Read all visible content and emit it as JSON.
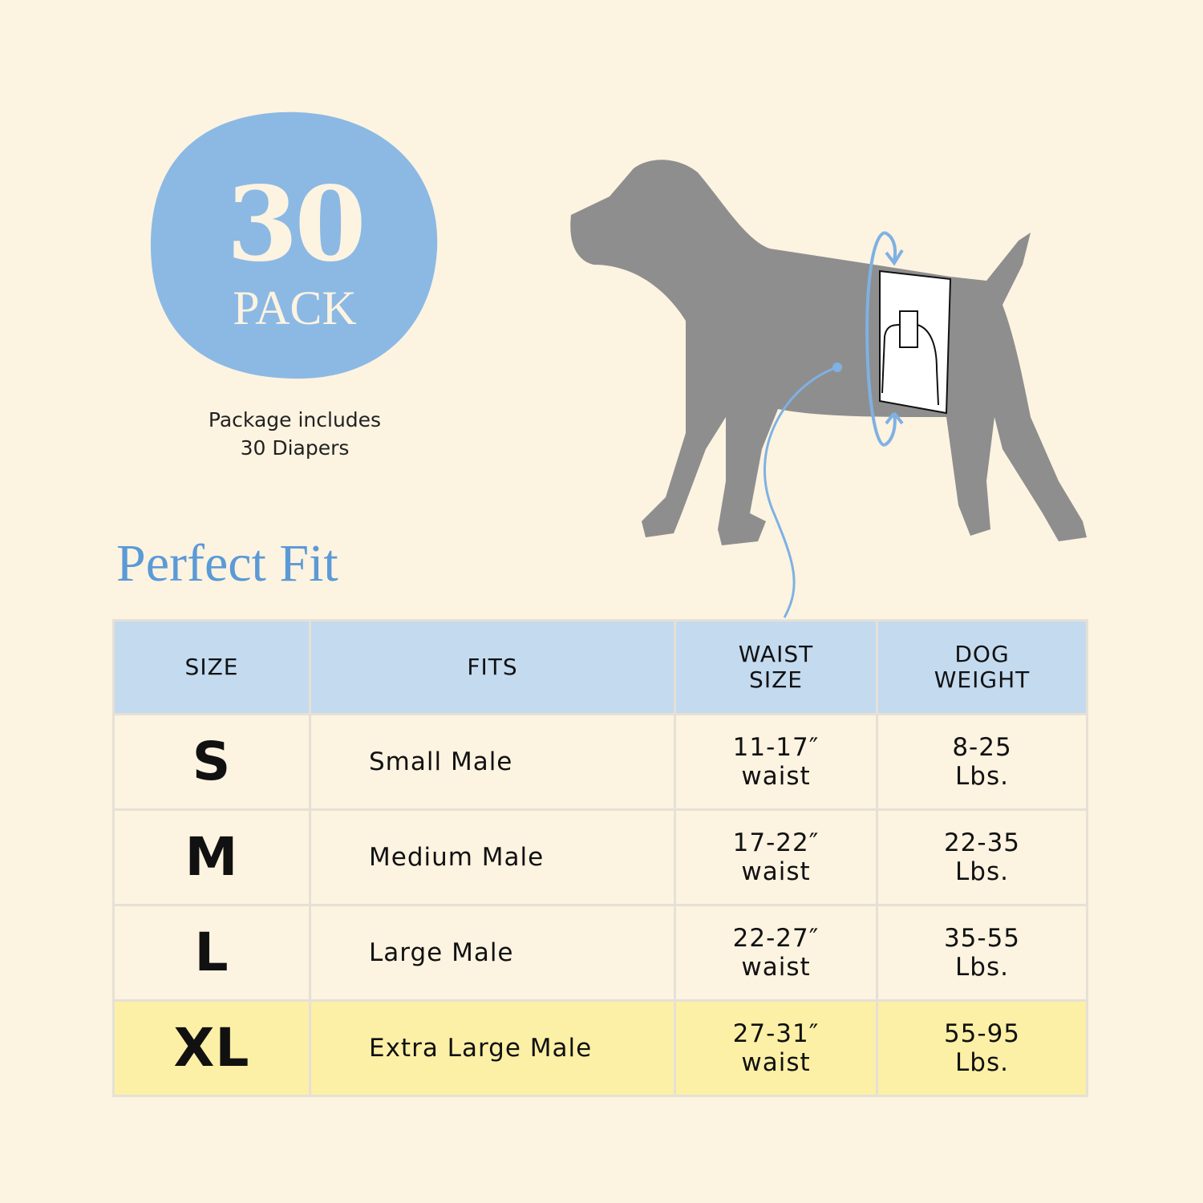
{
  "badge": {
    "number": "30",
    "label": "PACK",
    "color": "#8bb9e4"
  },
  "package_text": [
    "Package includes",
    "30 Diapers"
  ],
  "section_title": "Perfect Fit",
  "table": {
    "headers": [
      "SIZE",
      "FITS",
      [
        "WAIST",
        "SIZE"
      ],
      [
        "DOG",
        "WEIGHT"
      ]
    ],
    "rows": [
      {
        "size": "S",
        "fits": "Small Male",
        "waist": [
          "11-17″",
          "waist"
        ],
        "weight": [
          "8-25",
          "Lbs."
        ]
      },
      {
        "size": "M",
        "fits": "Medium Male",
        "waist": [
          "17-22″",
          "waist"
        ],
        "weight": [
          "22-35",
          "Lbs."
        ]
      },
      {
        "size": "L",
        "fits": "Large Male",
        "waist": [
          "22-27″",
          "waist"
        ],
        "weight": [
          "35-55",
          "Lbs."
        ]
      },
      {
        "size": "XL",
        "fits": "Extra Large Male",
        "waist": [
          "27-31″",
          "waist"
        ],
        "weight": [
          "55-95",
          "Lbs."
        ],
        "highlighted": true
      }
    ]
  },
  "colors": {
    "background": "#fcf3e1",
    "header": "#c3daef",
    "highlight": "#fcf0a6",
    "dog": "#8e8e8e",
    "accent": "#5b9ad6"
  }
}
